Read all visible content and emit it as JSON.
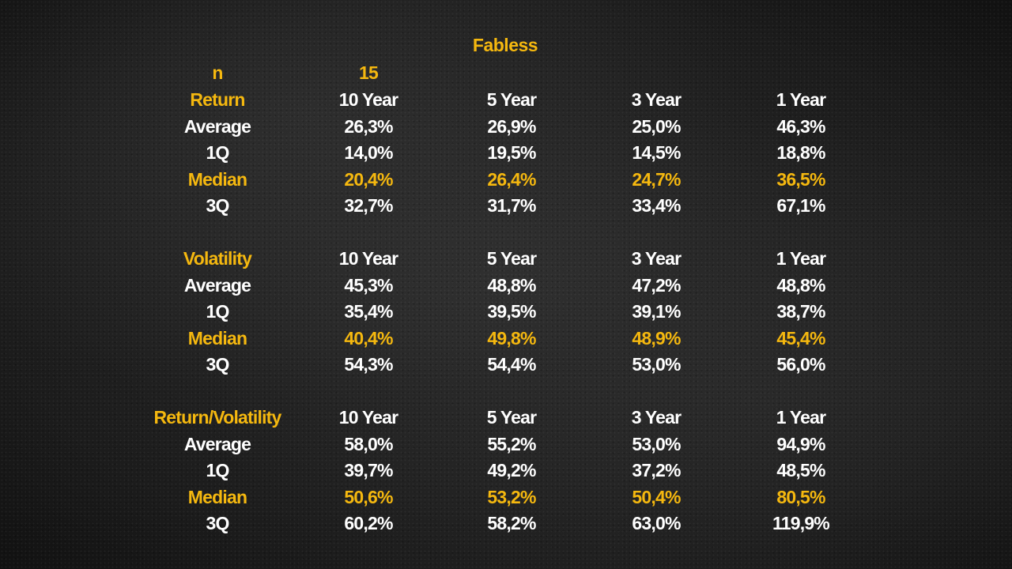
{
  "title": "Fabless",
  "n": {
    "label": "n",
    "value": "15"
  },
  "sections": [
    {
      "label": "Return",
      "headers": [
        "10 Year",
        "5 Year",
        "3 Year",
        "1 Year"
      ],
      "rows": [
        {
          "label": "Average",
          "values": [
            "26,3%",
            "26,9%",
            "25,0%",
            "46,3%"
          ],
          "highlight": false
        },
        {
          "label": "1Q",
          "values": [
            "14,0%",
            "19,5%",
            "14,5%",
            "18,8%"
          ],
          "highlight": false
        },
        {
          "label": "Median",
          "values": [
            "20,4%",
            "26,4%",
            "24,7%",
            "36,5%"
          ],
          "highlight": true
        },
        {
          "label": "3Q",
          "values": [
            "32,7%",
            "31,7%",
            "33,4%",
            "67,1%"
          ],
          "highlight": false
        }
      ]
    },
    {
      "label": "Volatility",
      "headers": [
        "10 Year",
        "5 Year",
        "3 Year",
        "1 Year"
      ],
      "rows": [
        {
          "label": "Average",
          "values": [
            "45,3%",
            "48,8%",
            "47,2%",
            "48,8%"
          ],
          "highlight": false
        },
        {
          "label": "1Q",
          "values": [
            "35,4%",
            "39,5%",
            "39,1%",
            "38,7%"
          ],
          "highlight": false
        },
        {
          "label": "Median",
          "values": [
            "40,4%",
            "49,8%",
            "48,9%",
            "45,4%"
          ],
          "highlight": true
        },
        {
          "label": "3Q",
          "values": [
            "54,3%",
            "54,4%",
            "53,0%",
            "56,0%"
          ],
          "highlight": false
        }
      ]
    },
    {
      "label": "Return/Volatility",
      "headers": [
        "10 Year",
        "5 Year",
        "3 Year",
        "1 Year"
      ],
      "rows": [
        {
          "label": "Average",
          "values": [
            "58,0%",
            "55,2%",
            "53,0%",
            "94,9%"
          ],
          "highlight": false
        },
        {
          "label": "1Q",
          "values": [
            "39,7%",
            "49,2%",
            "37,2%",
            "48,5%"
          ],
          "highlight": false
        },
        {
          "label": "Median",
          "values": [
            "50,6%",
            "53,2%",
            "50,4%",
            "80,5%"
          ],
          "highlight": true
        },
        {
          "label": "3Q",
          "values": [
            "60,2%",
            "58,2%",
            "63,0%",
            "119,9%"
          ],
          "highlight": false
        }
      ]
    }
  ],
  "colors": {
    "accent": "#f5b80f",
    "text": "#ffffff",
    "background": "#222222"
  }
}
